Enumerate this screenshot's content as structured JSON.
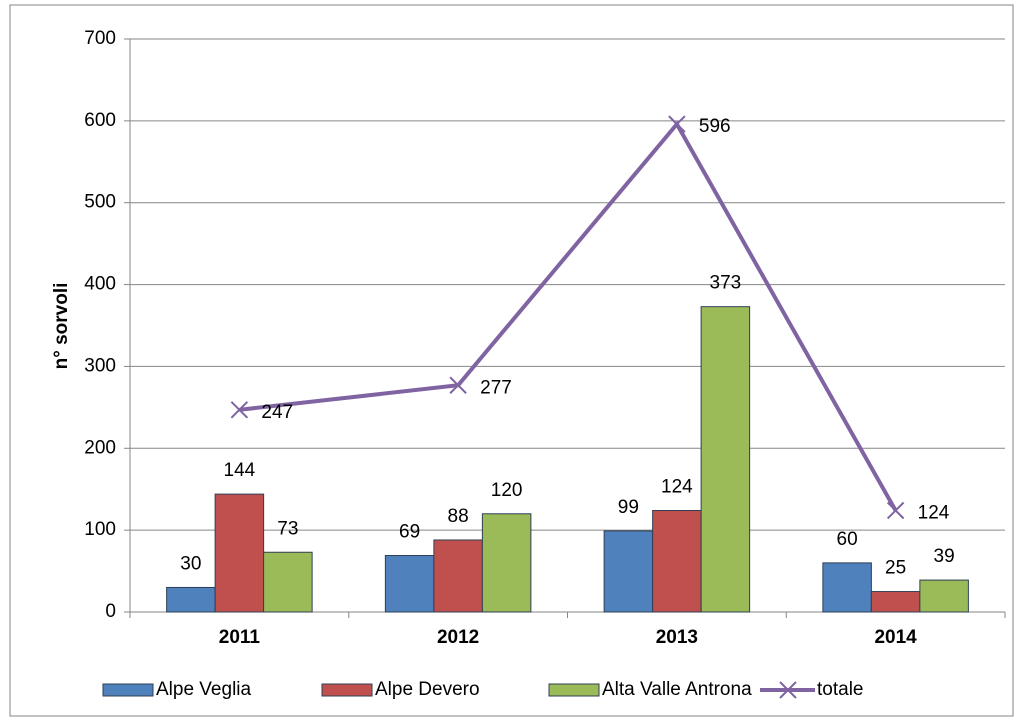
{
  "chart_data": {
    "type": "bar",
    "y_label": "n° sorvoli",
    "categories": [
      "2011",
      "2012",
      "2013",
      "2014"
    ],
    "series": [
      {
        "name": "Alpe Veglia",
        "type": "bar",
        "color": "#4f81bd",
        "values": [
          30,
          69,
          99,
          60
        ]
      },
      {
        "name": "Alpe Devero",
        "type": "bar",
        "color": "#c0504d",
        "values": [
          144,
          88,
          124,
          25
        ]
      },
      {
        "name": "Alta Valle Antrona",
        "type": "bar",
        "color": "#9bbb59",
        "values": [
          73,
          120,
          373,
          39
        ]
      },
      {
        "name": "totale",
        "type": "line",
        "color": "#8064a2",
        "values": [
          247,
          277,
          596,
          124
        ]
      }
    ],
    "ylim": [
      0,
      700
    ],
    "yticks": [
      0,
      100,
      200,
      300,
      400,
      500,
      600,
      700
    ],
    "grid": true,
    "legend": "bottom"
  }
}
